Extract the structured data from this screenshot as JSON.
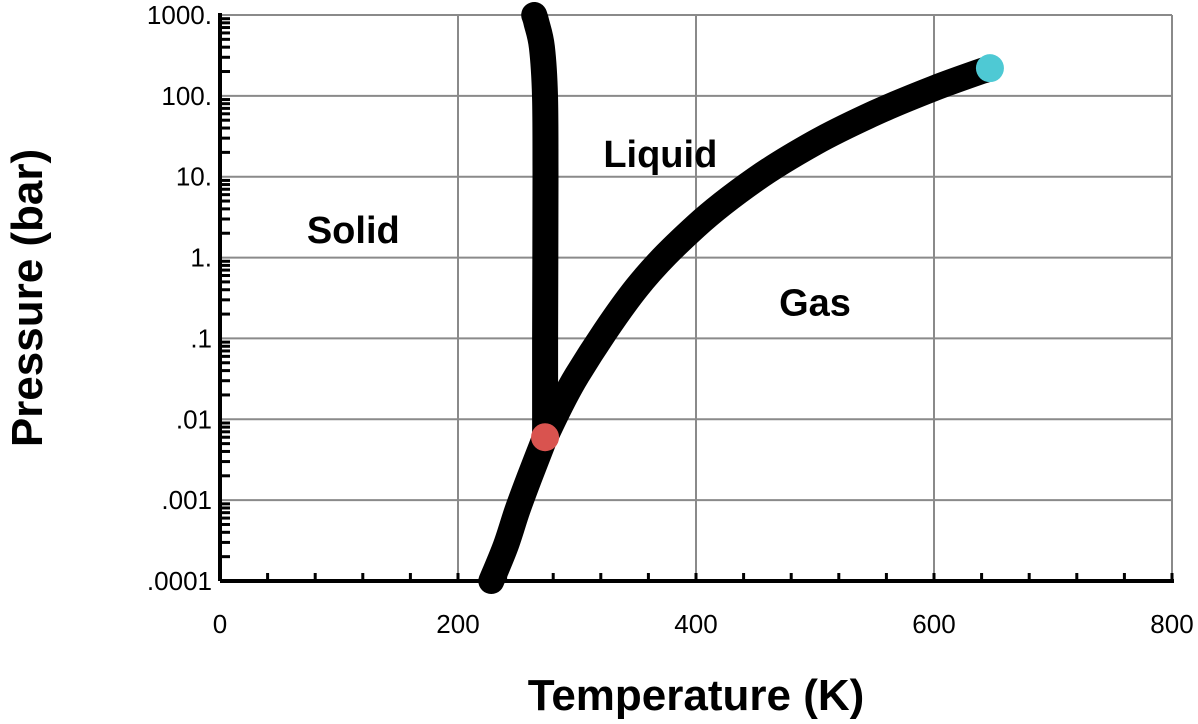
{
  "chart_data": {
    "type": "line",
    "title": "",
    "xlabel": "Temperature (K)",
    "ylabel": "Pressure (bar)",
    "xlim": [
      0,
      800
    ],
    "ylim": [
      0.0001,
      1000
    ],
    "y_scale": "log",
    "grid": true,
    "x_ticks": [
      0,
      200,
      400,
      600,
      800
    ],
    "x_tick_labels": [
      "0",
      "200",
      "400",
      "600",
      "800"
    ],
    "y_ticks": [
      0.0001,
      0.001,
      0.01,
      0.1,
      1,
      10,
      100,
      1000
    ],
    "y_tick_labels": [
      ".0001",
      ".001",
      ".01",
      ".1",
      "1.",
      "10.",
      "100.",
      "1000."
    ],
    "line_color": "#000000",
    "series": [
      {
        "id": "sublimation",
        "x": [
          228,
          240,
          250,
          260,
          273.16
        ],
        "y": [
          0.0001,
          0.00027,
          0.00076,
          0.0019,
          0.006
        ]
      },
      {
        "id": "fusion",
        "x": [
          273.16,
          273.2,
          273.5,
          273.1,
          270.5,
          266,
          264
        ],
        "y": [
          0.006,
          0.1,
          10,
          100,
          400,
          800,
          1000
        ]
      },
      {
        "id": "vaporization",
        "x": [
          273.16,
          300,
          350,
          400,
          450,
          500,
          550,
          600,
          647
        ],
        "y": [
          0.006,
          0.035,
          0.42,
          2.45,
          9.3,
          26.4,
          61.2,
          124,
          220
        ]
      }
    ],
    "points": [
      {
        "id": "triple-point",
        "x": 273.16,
        "y": 0.006,
        "color": "#d9534f"
      },
      {
        "id": "critical-point",
        "x": 647,
        "y": 220,
        "color": "#4ec9d4"
      }
    ],
    "annotations": [
      {
        "id": "solid",
        "text": "Solid",
        "x": 112,
        "y": 2.2
      },
      {
        "id": "liquid",
        "text": "Liquid",
        "x": 370,
        "y": 19
      },
      {
        "id": "gas",
        "text": "Gas",
        "x": 500,
        "y": 0.28
      }
    ]
  }
}
